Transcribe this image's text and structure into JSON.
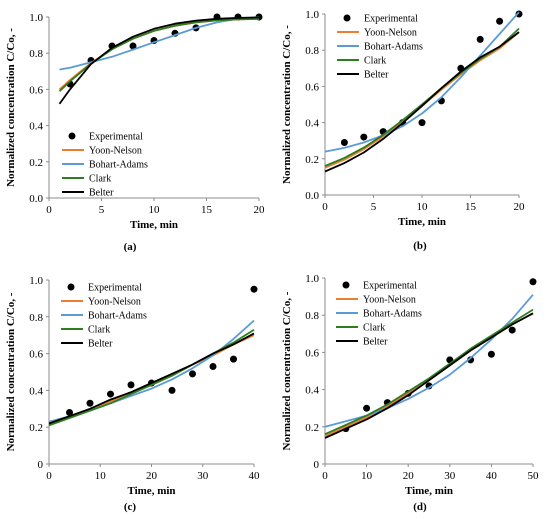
{
  "colors": {
    "Experimental": "#000000",
    "Yoon-Nelson": "#ED7D31",
    "Bohart-Adams": "#5B9BD5",
    "Clark": "#2E7D1E",
    "Belter": "#000000"
  },
  "chart_data": [
    {
      "type": "line",
      "panel_label": "(a)",
      "xlabel": "Time, min",
      "ylabel": "Normalized concentration C/Co, -",
      "xlim": [
        0,
        20
      ],
      "ylim": [
        0,
        1.0
      ],
      "xticks": [
        "0",
        "5",
        "10",
        "15",
        "20"
      ],
      "yticks": [
        "0.0",
        "0.2",
        "0.4",
        "0.6",
        "0.8",
        "1.0"
      ],
      "grid": false,
      "legend_position": "bottom-right",
      "legend": [
        "Experimental",
        "Yoon-Nelson",
        "Bohart-Adams",
        "Clark",
        "Belter"
      ],
      "series": [
        {
          "name": "Experimental",
          "kind": "scatter",
          "x": [
            2,
            4,
            6,
            8,
            10,
            12,
            14,
            16,
            18,
            20
          ],
          "y": [
            0.63,
            0.76,
            0.84,
            0.84,
            0.87,
            0.91,
            0.94,
            1.0,
            1.0,
            1.0
          ]
        },
        {
          "name": "Yoon-Nelson",
          "kind": "line",
          "x": [
            1,
            2,
            4,
            6,
            8,
            10,
            12,
            14,
            16,
            18,
            20
          ],
          "y": [
            0.6,
            0.652,
            0.746,
            0.822,
            0.881,
            0.924,
            0.952,
            0.97,
            0.981,
            0.987,
            0.99
          ]
        },
        {
          "name": "Bohart-Adams",
          "kind": "line",
          "x": [
            1,
            2,
            4,
            6,
            8,
            10,
            12,
            14,
            16,
            18,
            20
          ],
          "y": [
            0.71,
            0.72,
            0.75,
            0.78,
            0.82,
            0.86,
            0.9,
            0.94,
            0.97,
            0.99,
            1.0
          ]
        },
        {
          "name": "Clark",
          "kind": "line",
          "x": [
            1,
            2,
            4,
            6,
            8,
            10,
            12,
            14,
            16,
            18,
            20
          ],
          "y": [
            0.59,
            0.645,
            0.742,
            0.822,
            0.88,
            0.923,
            0.952,
            0.97,
            0.981,
            0.987,
            0.99
          ]
        },
        {
          "name": "Belter",
          "kind": "line",
          "x": [
            1,
            2,
            4,
            6,
            8,
            10,
            12,
            14,
            16,
            18,
            20
          ],
          "y": [
            0.52,
            0.6,
            0.74,
            0.83,
            0.891,
            0.935,
            0.963,
            0.98,
            0.99,
            0.995,
            0.998
          ]
        }
      ]
    },
    {
      "type": "line",
      "panel_label": "(b)",
      "xlabel": "Time, min",
      "ylabel": "Normalized concentration C/Co, -",
      "xlim": [
        0,
        20
      ],
      "ylim": [
        0,
        1.0
      ],
      "xticks": [
        "0",
        "5",
        "10",
        "15",
        "20"
      ],
      "yticks": [
        "0.0",
        "0.2",
        "0.4",
        "0.6",
        "0.8",
        "1.0"
      ],
      "grid": false,
      "legend_position": "top-left",
      "legend": [
        "Experimental",
        "Yoon-Nelson",
        "Bohart-Adams",
        "Clark",
        "Belter"
      ],
      "series": [
        {
          "name": "Experimental",
          "kind": "scatter",
          "x": [
            2,
            4,
            6,
            8,
            10,
            12,
            14,
            16,
            18,
            20
          ],
          "y": [
            0.29,
            0.32,
            0.35,
            0.4,
            0.4,
            0.52,
            0.7,
            0.86,
            0.96,
            1.0
          ]
        },
        {
          "name": "Yoon-Nelson",
          "kind": "line",
          "x": [
            0,
            2,
            4,
            6,
            8,
            10,
            12,
            14,
            16,
            18,
            20
          ],
          "y": [
            0.15,
            0.195,
            0.253,
            0.323,
            0.404,
            0.492,
            0.582,
            0.667,
            0.744,
            0.81,
            0.9
          ]
        },
        {
          "name": "Bohart-Adams",
          "kind": "line",
          "x": [
            0,
            2,
            4,
            6,
            8,
            10,
            12,
            14,
            16,
            18,
            20
          ],
          "y": [
            0.24,
            0.26,
            0.29,
            0.33,
            0.38,
            0.45,
            0.54,
            0.65,
            0.77,
            0.89,
            1.01
          ]
        },
        {
          "name": "Clark",
          "kind": "line",
          "x": [
            0,
            2,
            4,
            6,
            8,
            10,
            12,
            14,
            16,
            18,
            20
          ],
          "y": [
            0.16,
            0.205,
            0.262,
            0.332,
            0.413,
            0.5,
            0.59,
            0.675,
            0.752,
            0.818,
            0.92
          ]
        },
        {
          "name": "Belter",
          "kind": "line",
          "x": [
            0,
            2,
            4,
            6,
            8,
            10,
            12,
            14,
            16,
            18,
            20
          ],
          "y": [
            0.13,
            0.176,
            0.235,
            0.31,
            0.397,
            0.492,
            0.59,
            0.682,
            0.76,
            0.82,
            0.9
          ]
        }
      ]
    },
    {
      "type": "line",
      "panel_label": "(c)",
      "xlabel": "Time, min",
      "ylabel": "Normalized concentration C/Co, -",
      "xlim": [
        0,
        40
      ],
      "ylim": [
        0,
        1.0
      ],
      "xticks": [
        "0",
        "10",
        "20",
        "30",
        "40"
      ],
      "yticks": [
        "0",
        "0.2",
        "0.4",
        "0.6",
        "0.8",
        "1.0"
      ],
      "grid": false,
      "legend_position": "top-left",
      "legend": [
        "Experimental",
        "Yoon-Nelson",
        "Bohart-Adams",
        "Clark",
        "Belter"
      ],
      "series": [
        {
          "name": "Experimental",
          "kind": "scatter",
          "x": [
            4,
            8,
            12,
            16,
            20,
            24,
            28,
            32,
            36,
            40
          ],
          "y": [
            0.28,
            0.33,
            0.38,
            0.43,
            0.44,
            0.4,
            0.49,
            0.53,
            0.57,
            0.95
          ]
        },
        {
          "name": "Yoon-Nelson",
          "kind": "line",
          "x": [
            0,
            4,
            8,
            12,
            16,
            20,
            24,
            28,
            32,
            36,
            40
          ],
          "y": [
            0.22,
            0.26,
            0.3,
            0.34,
            0.39,
            0.43,
            0.48,
            0.54,
            0.59,
            0.65,
            0.7
          ]
        },
        {
          "name": "Bohart-Adams",
          "kind": "line",
          "x": [
            0,
            4,
            8,
            12,
            16,
            20,
            24,
            28,
            32,
            36,
            40
          ],
          "y": [
            0.23,
            0.26,
            0.29,
            0.33,
            0.37,
            0.41,
            0.46,
            0.52,
            0.59,
            0.68,
            0.78
          ]
        },
        {
          "name": "Clark",
          "kind": "line",
          "x": [
            0,
            4,
            8,
            12,
            16,
            20,
            24,
            28,
            32,
            36,
            40
          ],
          "y": [
            0.21,
            0.25,
            0.29,
            0.33,
            0.38,
            0.43,
            0.48,
            0.54,
            0.6,
            0.66,
            0.73
          ]
        },
        {
          "name": "Belter",
          "kind": "line",
          "x": [
            0,
            4,
            8,
            12,
            16,
            20,
            24,
            28,
            32,
            36,
            40
          ],
          "y": [
            0.22,
            0.26,
            0.3,
            0.35,
            0.39,
            0.44,
            0.49,
            0.54,
            0.6,
            0.65,
            0.71
          ]
        }
      ]
    },
    {
      "type": "line",
      "panel_label": "(d)",
      "xlabel": "Time, min",
      "ylabel": "Normalized concentration C/Co, -",
      "xlim": [
        0,
        50
      ],
      "ylim": [
        0,
        1.0
      ],
      "xticks": [
        "0",
        "10",
        "20",
        "30",
        "40",
        "50"
      ],
      "yticks": [
        "0",
        "0.2",
        "0.4",
        "0.6",
        "0.8",
        "1.0"
      ],
      "grid": false,
      "legend_position": "top-left",
      "legend": [
        "Experimental",
        "Yoon-Nelson",
        "Bohart-Adams",
        "Clark",
        "Belter"
      ],
      "series": [
        {
          "name": "Experimental",
          "kind": "scatter",
          "x": [
            5,
            10,
            15,
            20,
            25,
            30,
            35,
            40,
            45,
            50
          ],
          "y": [
            0.19,
            0.3,
            0.33,
            0.38,
            0.42,
            0.56,
            0.56,
            0.59,
            0.72,
            0.98
          ]
        },
        {
          "name": "Yoon-Nelson",
          "kind": "line",
          "x": [
            0,
            5,
            10,
            15,
            20,
            25,
            30,
            35,
            40,
            45,
            50
          ],
          "y": [
            0.15,
            0.2,
            0.25,
            0.31,
            0.38,
            0.45,
            0.53,
            0.61,
            0.68,
            0.75,
            0.81
          ]
        },
        {
          "name": "Bohart-Adams",
          "kind": "line",
          "x": [
            0,
            5,
            10,
            15,
            20,
            25,
            30,
            35,
            40,
            45,
            50
          ],
          "y": [
            0.2,
            0.23,
            0.26,
            0.3,
            0.35,
            0.41,
            0.48,
            0.57,
            0.67,
            0.78,
            0.91
          ]
        },
        {
          "name": "Clark",
          "kind": "line",
          "x": [
            0,
            5,
            10,
            15,
            20,
            25,
            30,
            35,
            40,
            45,
            50
          ],
          "y": [
            0.16,
            0.21,
            0.26,
            0.32,
            0.39,
            0.46,
            0.54,
            0.62,
            0.69,
            0.76,
            0.83
          ]
        },
        {
          "name": "Belter",
          "kind": "line",
          "x": [
            0,
            5,
            10,
            15,
            20,
            25,
            30,
            35,
            40,
            45,
            50
          ],
          "y": [
            0.14,
            0.19,
            0.24,
            0.3,
            0.37,
            0.45,
            0.53,
            0.61,
            0.68,
            0.75,
            0.81
          ]
        }
      ]
    }
  ]
}
